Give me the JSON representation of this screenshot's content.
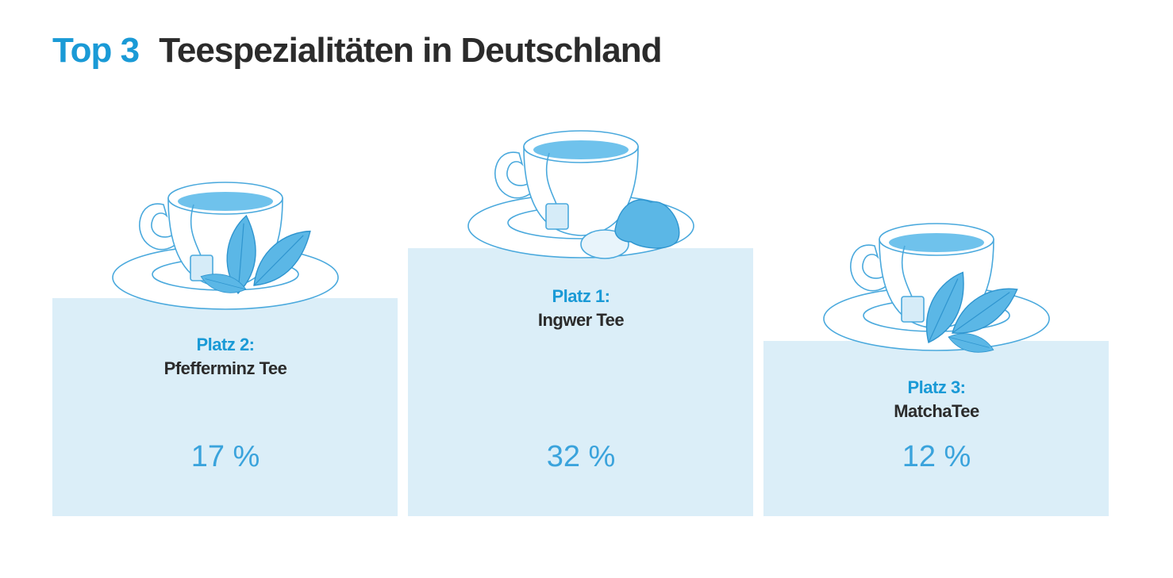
{
  "title": {
    "highlight": "Top 3",
    "text": "Teespezialitäten in Deutschland"
  },
  "podiums": [
    {
      "rank": "Platz 2:",
      "name": "Pfefferminz Tee",
      "share": "17 %"
    },
    {
      "rank": "Platz 1:",
      "name": "Ingwer Tee",
      "share": "32 %"
    },
    {
      "rank": "Platz 3:",
      "name": "MatchaTee",
      "share": "12 %"
    }
  ]
}
